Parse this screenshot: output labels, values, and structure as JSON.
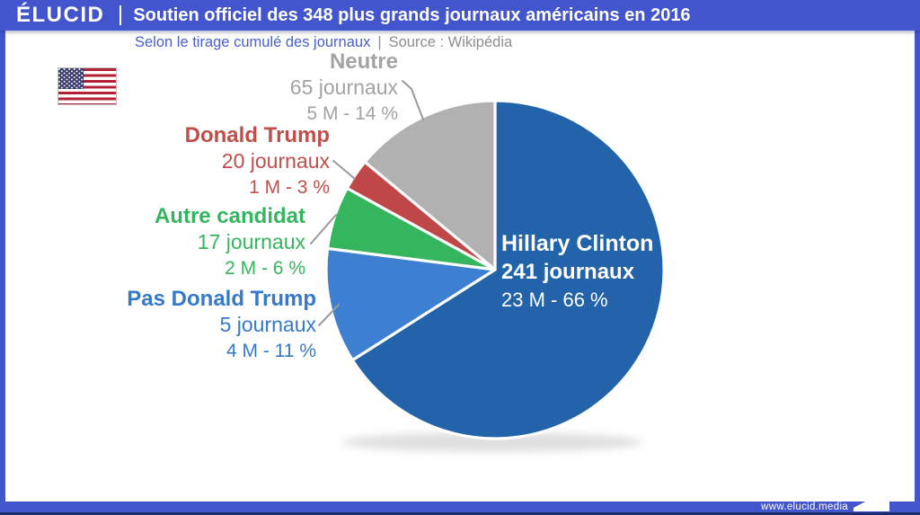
{
  "header": {
    "logo": "ÉLUCID",
    "title": "Soutien officiel des 348 plus grands journaux américains en 2016"
  },
  "subtitle": {
    "left": "Selon le tirage cumulé des journaux",
    "separator": "|",
    "right": "Source : Wikipédia"
  },
  "footer": {
    "url": "www.elucid.media"
  },
  "icons": {
    "flag": "us-flag-icon",
    "footer_logo": "elucid-arrow-icon"
  },
  "colors": {
    "frame_blue": "#4355cc",
    "navy_line": "#1c2b6d",
    "subtitle_blue": "#4a5fc9",
    "subtitle_gray": "#8e8e8e",
    "leader_gray": "#9a9a9a",
    "pie_stroke": "#ffffff"
  },
  "chart_data": {
    "type": "pie",
    "title": "Soutien officiel des 348 plus grands journaux américains en 2016",
    "subtitle": "Selon le tirage cumulé des journaux",
    "source": "Wikipédia",
    "total_journals": 348,
    "start_angle_deg": 0,
    "direction": "clockwise",
    "slices": [
      {
        "label": "Hillary Clinton",
        "journals": 241,
        "journals_label": "241 journaux",
        "value_label": "23 M - 66 %",
        "circulation_millions": 23,
        "percent": 66,
        "color": "#2263a9",
        "label_color": "#ffffff",
        "label_position": "inside"
      },
      {
        "label": "Pas Donald Trump",
        "journals": 5,
        "journals_label": "5 journaux",
        "value_label": "4 M - 11 %",
        "circulation_millions": 4,
        "percent": 11,
        "color": "#3d80d2",
        "label_color": "#3579cb",
        "label_position": "outside"
      },
      {
        "label": "Autre candidat",
        "journals": 17,
        "journals_label": "17 journaux",
        "value_label": "2 M - 6 %",
        "circulation_millions": 2,
        "percent": 6,
        "color": "#36b55f",
        "label_color": "#36b55f",
        "label_position": "outside"
      },
      {
        "label": "Donald Trump",
        "journals": 20,
        "journals_label": "20 journaux",
        "value_label": "1 M - 3 %",
        "circulation_millions": 1,
        "percent": 3,
        "color": "#bf4747",
        "label_color": "#c04f4c",
        "label_position": "outside"
      },
      {
        "label": "Neutre",
        "journals": 65,
        "journals_label": "65 journaux",
        "value_label": "5 M - 14 %",
        "circulation_millions": 5,
        "percent": 14,
        "color": "#b1b1b1",
        "label_color": "#a3a3a3",
        "label_position": "outside"
      }
    ]
  }
}
